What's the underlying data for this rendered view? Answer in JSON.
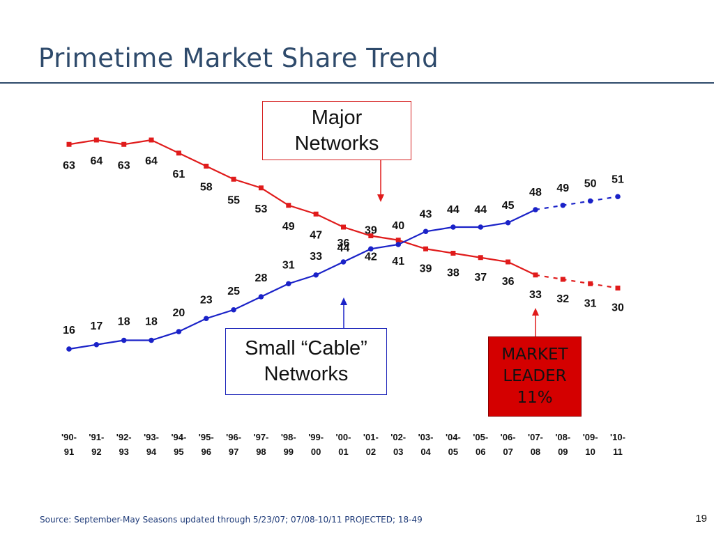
{
  "slide": {
    "title": "Primetime Market Share Trend",
    "source": "Source: September-May Seasons updated through 5/23/07; 07/08-10/11 PROJECTED; 18-49",
    "page_number": "19"
  },
  "callouts": {
    "major": [
      "Major",
      "Networks"
    ],
    "cable": [
      "Small “Cable”",
      "Networks"
    ],
    "market_leader": [
      "MARKET",
      "LEADER",
      "11%"
    ]
  },
  "colors": {
    "major": "#e01b1b",
    "cable": "#1a22c8",
    "title": "#2e4a6b",
    "market_leader_fill": "#d40000"
  },
  "chart_data": {
    "type": "line",
    "categories": [
      [
        "'90-",
        "91"
      ],
      [
        "'91-",
        "92"
      ],
      [
        "'92-",
        "93"
      ],
      [
        "'93-",
        "94"
      ],
      [
        "'94-",
        "95"
      ],
      [
        "'95-",
        "96"
      ],
      [
        "'96-",
        "97"
      ],
      [
        "'97-",
        "98"
      ],
      [
        "'98-",
        "99"
      ],
      [
        "'99-",
        "00"
      ],
      [
        "'00-",
        "01"
      ],
      [
        "'01-",
        "02"
      ],
      [
        "'02-",
        "03"
      ],
      [
        "'03-",
        "04"
      ],
      [
        "'04-",
        "05"
      ],
      [
        "'05-",
        "06"
      ],
      [
        "'06-",
        "07"
      ],
      [
        "'07-",
        "08"
      ],
      [
        "'08-",
        "09"
      ],
      [
        "'09-",
        "10"
      ],
      [
        "'10-",
        "11"
      ]
    ],
    "series": [
      {
        "key": "major",
        "values": [
          63,
          64,
          63,
          64,
          61,
          58,
          55,
          53,
          49,
          47,
          44,
          42,
          41,
          39,
          38,
          37,
          36,
          33,
          32,
          31,
          30
        ],
        "projected_from_index": 17
      },
      {
        "key": "cable",
        "values": [
          16,
          17,
          18,
          18,
          20,
          23,
          25,
          28,
          31,
          33,
          36,
          39,
          40,
          43,
          44,
          44,
          45,
          48,
          49,
          50,
          51
        ],
        "projected_from_index": 17
      }
    ],
    "ylim": [
      16,
      64
    ],
    "projected": [
      "'08-09",
      "'09-10",
      "'10-11"
    ],
    "legend": "none",
    "grid": false
  }
}
